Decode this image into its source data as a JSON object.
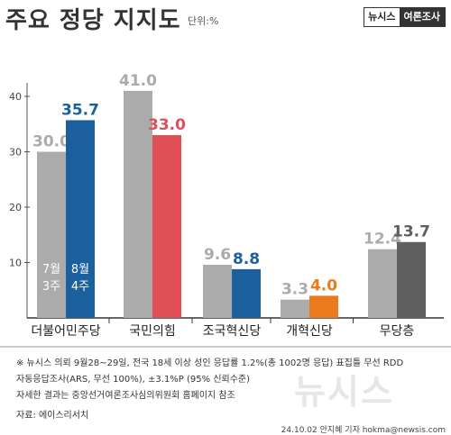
{
  "header": {
    "title": "주요 정당 지지도",
    "unit": "단위:%",
    "brand_left": "뉴시스",
    "brand_right": "여론조사"
  },
  "chart_data": {
    "type": "bar",
    "categories": [
      "더불어민주당",
      "국민의힘",
      "조국혁신당",
      "개혁신당",
      "무당층"
    ],
    "series": [
      {
        "name": "7월 3주",
        "label_line1": "7월",
        "label_line2": "3주",
        "values": [
          30.0,
          41.0,
          9.6,
          3.3,
          12.4
        ]
      },
      {
        "name": "8월 4주",
        "label_line1": "8월",
        "label_line2": "4주",
        "values": [
          35.7,
          33.0,
          8.8,
          4.0,
          13.7
        ]
      }
    ],
    "value_labels": [
      [
        "30.0",
        "35.7"
      ],
      [
        "41.0",
        "33.0"
      ],
      [
        "9.6",
        "8.8"
      ],
      [
        "3.3",
        "4.0"
      ],
      [
        "12.4",
        "13.7"
      ]
    ],
    "y_ticks": [
      "10",
      "20",
      "30",
      "40"
    ],
    "ylim": [
      0,
      45
    ],
    "colors": {
      "first": "#ababab",
      "second": [
        "#1a5f9e",
        "#e04e57",
        "#1a5f9e",
        "#ea7b1c",
        "#5f5f5f"
      ],
      "first_label": "#ababab",
      "second_label": [
        "#1a5f9e",
        "#e04e57",
        "#1a5f9e",
        "#ea7b1c",
        "#5f5f5f"
      ]
    },
    "grid": false
  },
  "footer": {
    "notes": [
      "※ 뉴시스 의뢰 9월28~29일, 전국 18세 이상 성인 응답률 1.2%(총 1002명 응답) 표집틀 무선 RDD",
      "자동응답조사(ARS, 무선 100%), ±3.1%P (95% 신뢰수준)",
      "자세한 결과는 중앙선거여론조사심의위원회 홈페이지 참조",
      "자료: 에이스리서치"
    ],
    "credit": "24.10.02 안지혜 기자 hokma@newsis.com",
    "watermark": "뉴시스"
  }
}
